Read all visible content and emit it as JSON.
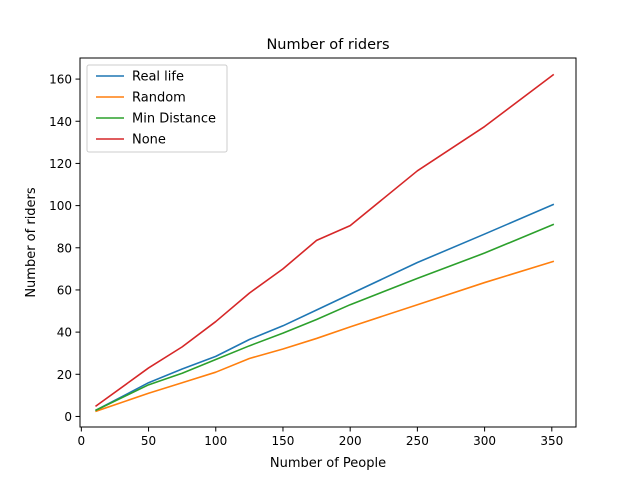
{
  "chart_data": {
    "type": "line",
    "title": "Number of riders",
    "xlabel": "Number of People",
    "ylabel": "Number of riders",
    "xlim": [
      -1,
      368
    ],
    "ylim": [
      -5,
      170
    ],
    "xticks": [
      0,
      50,
      100,
      150,
      200,
      250,
      300,
      350
    ],
    "yticks": [
      0,
      20,
      40,
      60,
      80,
      100,
      120,
      140,
      160
    ],
    "grid": false,
    "legend": "top-left",
    "x": [
      11,
      50,
      75,
      100,
      125,
      150,
      175,
      200,
      250,
      300,
      351
    ],
    "series": [
      {
        "name": "Real life",
        "color": "#1f77b4",
        "values": [
          3,
          16,
          22.5,
          28.5,
          36.5,
          43,
          50.5,
          58,
          73,
          86.5,
          100.5
        ]
      },
      {
        "name": "Random",
        "color": "#ff7f0e",
        "values": [
          2.5,
          11,
          16,
          21,
          27.5,
          32,
          37,
          42.5,
          53,
          63.5,
          73.5
        ]
      },
      {
        "name": "Min Distance",
        "color": "#2ca02c",
        "values": [
          3,
          15,
          20.5,
          27,
          33.5,
          39.5,
          46,
          53,
          65.5,
          77.5,
          91
        ]
      },
      {
        "name": "None",
        "color": "#d62728",
        "values": [
          5,
          23,
          33,
          45,
          58.5,
          70,
          83.5,
          90.5,
          116.5,
          137.5,
          162
        ]
      }
    ]
  }
}
